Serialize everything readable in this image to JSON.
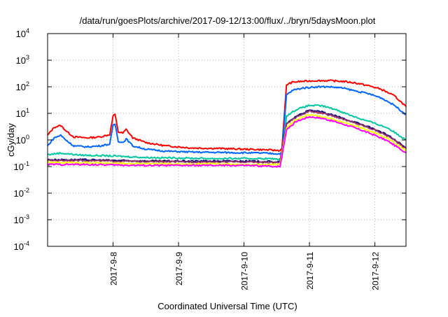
{
  "chart_data": {
    "type": "line",
    "title": "/data/run/goesPlots/archive/2017-09-12/13:00/flux/../bryn/5daysMoon.plot",
    "xlabel": "Coordinated Universal Time (UTC)",
    "ylabel": "cGy/day",
    "yscale": "log",
    "ylim": [
      0.0001,
      10000
    ],
    "xlim": [
      0,
      5.475
    ],
    "x_reference": "2017-09-07 UTC",
    "grid": true,
    "legend": "none",
    "yticks": [
      {
        "base": "10",
        "exp": "-4"
      },
      {
        "base": "10",
        "exp": "-3"
      },
      {
        "base": "10",
        "exp": "-2"
      },
      {
        "base": "10",
        "exp": "-1"
      },
      {
        "base": "10",
        "exp": "0"
      },
      {
        "base": "10",
        "exp": "1"
      },
      {
        "base": "10",
        "exp": "2"
      },
      {
        "base": "10",
        "exp": "3"
      },
      {
        "base": "10",
        "exp": "4"
      }
    ],
    "xticks": [
      {
        "label": "2017-9-8",
        "x": 1
      },
      {
        "label": "2017-9-9",
        "x": 2
      },
      {
        "label": "2017-9-10",
        "x": 3
      },
      {
        "label": "2017-9-11",
        "x": 4
      },
      {
        "label": "2017-9-12",
        "x": 5
      }
    ],
    "series": [
      {
        "color": "#ff0000",
        "points": [
          [
            0,
            1.5
          ],
          [
            0.1,
            3.0
          ],
          [
            0.2,
            3.5
          ],
          [
            0.3,
            2.0
          ],
          [
            0.4,
            1.3
          ],
          [
            0.6,
            1.2
          ],
          [
            0.8,
            1.3
          ],
          [
            0.95,
            1.6
          ],
          [
            1.0,
            8.0
          ],
          [
            1.03,
            9.0
          ],
          [
            1.08,
            2.0
          ],
          [
            1.15,
            1.8
          ],
          [
            1.2,
            2.5
          ],
          [
            1.3,
            1.2
          ],
          [
            1.5,
            0.8
          ],
          [
            1.8,
            0.6
          ],
          [
            2.2,
            0.5
          ],
          [
            2.6,
            0.48
          ],
          [
            3.0,
            0.45
          ],
          [
            3.3,
            0.43
          ],
          [
            3.55,
            0.4
          ],
          [
            3.58,
            0.5
          ],
          [
            3.65,
            120
          ],
          [
            3.75,
            150
          ],
          [
            3.9,
            160
          ],
          [
            4.1,
            170
          ],
          [
            4.3,
            170
          ],
          [
            4.5,
            160
          ],
          [
            4.7,
            140
          ],
          [
            4.9,
            110
          ],
          [
            5.1,
            80
          ],
          [
            5.3,
            45
          ],
          [
            5.475,
            18
          ]
        ]
      },
      {
        "color": "#0066ff",
        "points": [
          [
            0,
            0.6
          ],
          [
            0.1,
            1.2
          ],
          [
            0.2,
            1.5
          ],
          [
            0.3,
            0.9
          ],
          [
            0.4,
            0.6
          ],
          [
            0.6,
            0.55
          ],
          [
            0.8,
            0.6
          ],
          [
            0.95,
            0.7
          ],
          [
            1.0,
            3.5
          ],
          [
            1.03,
            4.0
          ],
          [
            1.08,
            0.9
          ],
          [
            1.15,
            0.8
          ],
          [
            1.2,
            1.1
          ],
          [
            1.3,
            0.6
          ],
          [
            1.5,
            0.45
          ],
          [
            1.8,
            0.38
          ],
          [
            2.2,
            0.35
          ],
          [
            2.6,
            0.34
          ],
          [
            3.0,
            0.33
          ],
          [
            3.3,
            0.32
          ],
          [
            3.55,
            0.3
          ],
          [
            3.58,
            0.35
          ],
          [
            3.65,
            50
          ],
          [
            3.75,
            75
          ],
          [
            3.9,
            90
          ],
          [
            4.1,
            100
          ],
          [
            4.3,
            100
          ],
          [
            4.5,
            90
          ],
          [
            4.7,
            70
          ],
          [
            4.9,
            55
          ],
          [
            5.1,
            38
          ],
          [
            5.3,
            20
          ],
          [
            5.475,
            9
          ]
        ]
      },
      {
        "color": "#00c8a0",
        "points": [
          [
            0,
            0.28
          ],
          [
            0.2,
            0.32
          ],
          [
            0.5,
            0.27
          ],
          [
            1.0,
            0.25
          ],
          [
            1.5,
            0.22
          ],
          [
            2.0,
            0.21
          ],
          [
            2.5,
            0.2
          ],
          [
            3.0,
            0.2
          ],
          [
            3.3,
            0.2
          ],
          [
            3.55,
            0.19
          ],
          [
            3.58,
            0.2
          ],
          [
            3.65,
            8
          ],
          [
            3.8,
            14
          ],
          [
            4.0,
            20
          ],
          [
            4.2,
            19
          ],
          [
            4.4,
            14
          ],
          [
            4.6,
            9
          ],
          [
            4.8,
            6
          ],
          [
            5.0,
            4.2
          ],
          [
            5.2,
            2.8
          ],
          [
            5.475,
            1.0
          ]
        ]
      },
      {
        "color": "#000080",
        "points": [
          [
            0,
            0.18
          ],
          [
            0.5,
            0.18
          ],
          [
            1.0,
            0.17
          ],
          [
            1.5,
            0.16
          ],
          [
            2.0,
            0.16
          ],
          [
            2.5,
            0.16
          ],
          [
            3.0,
            0.16
          ],
          [
            3.55,
            0.15
          ],
          [
            3.65,
            4
          ],
          [
            3.8,
            8
          ],
          [
            4.0,
            13
          ],
          [
            4.2,
            11
          ],
          [
            4.4,
            8
          ],
          [
            4.6,
            5.5
          ],
          [
            4.8,
            3.8
          ],
          [
            5.0,
            2.5
          ],
          [
            5.2,
            1.5
          ],
          [
            5.475,
            0.5
          ]
        ]
      },
      {
        "color": "#993366",
        "points": [
          [
            0,
            0.17
          ],
          [
            0.5,
            0.17
          ],
          [
            1.0,
            0.16
          ],
          [
            1.5,
            0.155
          ],
          [
            2.0,
            0.15
          ],
          [
            2.5,
            0.15
          ],
          [
            3.0,
            0.15
          ],
          [
            3.55,
            0.14
          ],
          [
            3.65,
            3.8
          ],
          [
            3.8,
            7.5
          ],
          [
            4.0,
            12
          ],
          [
            4.2,
            10
          ],
          [
            4.4,
            7.5
          ],
          [
            4.6,
            5.2
          ],
          [
            4.8,
            3.6
          ],
          [
            5.0,
            2.4
          ],
          [
            5.2,
            1.4
          ],
          [
            5.475,
            0.48
          ]
        ]
      },
      {
        "color": "#ffff00",
        "points": [
          [
            0,
            0.14
          ],
          [
            0.5,
            0.14
          ],
          [
            1.0,
            0.13
          ],
          [
            1.5,
            0.13
          ],
          [
            2.0,
            0.125
          ],
          [
            2.5,
            0.125
          ],
          [
            3.0,
            0.12
          ],
          [
            3.55,
            0.12
          ],
          [
            3.65,
            3
          ],
          [
            3.8,
            6
          ],
          [
            4.0,
            9
          ],
          [
            4.2,
            7.5
          ],
          [
            4.4,
            5.5
          ],
          [
            4.6,
            4
          ],
          [
            4.8,
            2.8
          ],
          [
            5.0,
            1.8
          ],
          [
            5.2,
            1.1
          ],
          [
            5.475,
            0.4
          ]
        ]
      },
      {
        "color": "#ff00ff",
        "points": [
          [
            0,
            0.12
          ],
          [
            0.5,
            0.12
          ],
          [
            1.0,
            0.115
          ],
          [
            1.5,
            0.11
          ],
          [
            2.0,
            0.11
          ],
          [
            2.5,
            0.11
          ],
          [
            3.0,
            0.11
          ],
          [
            3.55,
            0.1
          ],
          [
            3.65,
            2.5
          ],
          [
            3.8,
            5
          ],
          [
            4.0,
            7.5
          ],
          [
            4.2,
            6.5
          ],
          [
            4.4,
            4.8
          ],
          [
            4.6,
            3.4
          ],
          [
            4.8,
            2.3
          ],
          [
            5.0,
            1.5
          ],
          [
            5.2,
            0.9
          ],
          [
            5.475,
            0.33
          ]
        ]
      }
    ]
  }
}
